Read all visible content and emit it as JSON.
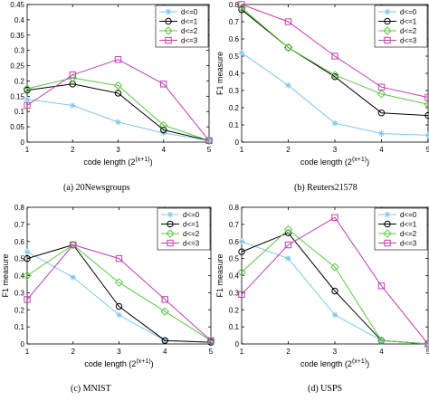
{
  "chart_data": [
    {
      "type": "line",
      "caption": "(a)  20Newsgroups",
      "xlabel": "code length (2^(x+1))",
      "ylabel": "",
      "x": [
        1,
        2,
        3,
        4,
        5
      ],
      "xticks": [
        "1",
        "2",
        "3",
        "4",
        "5"
      ],
      "ylim": [
        0,
        0.45
      ],
      "yticks": [
        "0",
        "0.05",
        "0.1",
        "0.15",
        "0.2",
        "0.25",
        "0.3",
        "0.35",
        "0.4",
        "0.45"
      ],
      "legend": "top-right",
      "series": [
        {
          "name": "d<=0",
          "color": "#7fc8e8",
          "marker": "star",
          "values": [
            0.14,
            0.12,
            0.065,
            0.03,
            0.005
          ]
        },
        {
          "name": "d<=1",
          "color": "#000000",
          "marker": "circle",
          "values": [
            0.17,
            0.19,
            0.16,
            0.04,
            0.005
          ]
        },
        {
          "name": "d<=2",
          "color": "#5cc843",
          "marker": "diamond",
          "values": [
            0.175,
            0.21,
            0.185,
            0.055,
            0.005
          ]
        },
        {
          "name": "d<=3",
          "color": "#c040b0",
          "marker": "square",
          "values": [
            0.12,
            0.22,
            0.27,
            0.19,
            0.005
          ]
        }
      ]
    },
    {
      "type": "line",
      "caption": "(b)  Reuters21578",
      "xlabel": "code length (2^(x+1))",
      "ylabel": "F1 measure",
      "x": [
        1,
        2,
        3,
        4,
        5
      ],
      "xticks": [
        "1",
        "2",
        "3",
        "4",
        "5"
      ],
      "ylim": [
        0,
        0.8
      ],
      "yticks": [
        "0",
        "0.1",
        "0.2",
        "0.3",
        "0.4",
        "0.5",
        "0.6",
        "0.7",
        "0.8"
      ],
      "legend": "top-right",
      "series": [
        {
          "name": "d<=0",
          "color": "#7fc8e8",
          "marker": "star",
          "values": [
            0.52,
            0.33,
            0.11,
            0.05,
            0.04
          ]
        },
        {
          "name": "d<=1",
          "color": "#000000",
          "marker": "circle",
          "values": [
            0.77,
            0.55,
            0.38,
            0.17,
            0.155
          ]
        },
        {
          "name": "d<=2",
          "color": "#5cc843",
          "marker": "diamond",
          "values": [
            0.78,
            0.55,
            0.39,
            0.28,
            0.22
          ]
        },
        {
          "name": "d<=3",
          "color": "#c040b0",
          "marker": "square",
          "values": [
            0.8,
            0.7,
            0.5,
            0.32,
            0.26
          ]
        }
      ]
    },
    {
      "type": "line",
      "caption": "(c)  MNIST",
      "xlabel": "code length (2^(x+1))",
      "ylabel": "F1 measure",
      "x": [
        1,
        2,
        3,
        4,
        5
      ],
      "xticks": [
        "1",
        "2",
        "3",
        "4",
        "5"
      ],
      "ylim": [
        0,
        0.8
      ],
      "yticks": [
        "0",
        "0.1",
        "0.2",
        "0.3",
        "0.4",
        "0.5",
        "0.6",
        "0.7",
        "0.8"
      ],
      "legend": "top-right",
      "series": [
        {
          "name": "d<=0",
          "color": "#7fc8e8",
          "marker": "star",
          "values": [
            0.54,
            0.39,
            0.17,
            0.02,
            0.01
          ]
        },
        {
          "name": "d<=1",
          "color": "#000000",
          "marker": "circle",
          "values": [
            0.5,
            0.58,
            0.22,
            0.02,
            0.01
          ]
        },
        {
          "name": "d<=2",
          "color": "#5cc843",
          "marker": "diamond",
          "values": [
            0.4,
            0.58,
            0.36,
            0.19,
            0.02
          ]
        },
        {
          "name": "d<=3",
          "color": "#c040b0",
          "marker": "square",
          "values": [
            0.26,
            0.58,
            0.5,
            0.26,
            0.02
          ]
        }
      ]
    },
    {
      "type": "line",
      "caption": "(d)  USPS",
      "xlabel": "code length (2^(x+1))",
      "ylabel": "F1 measure",
      "x": [
        1,
        2,
        3,
        4,
        5
      ],
      "xticks": [
        "1",
        "2",
        "3",
        "4",
        "5"
      ],
      "ylim": [
        0,
        0.8
      ],
      "yticks": [
        "0",
        "0.1",
        "0.2",
        "0.3",
        "0.4",
        "0.5",
        "0.6",
        "0.7",
        "0.8"
      ],
      "legend": "top-right",
      "series": [
        {
          "name": "d<=0",
          "color": "#7fc8e8",
          "marker": "star",
          "values": [
            0.6,
            0.5,
            0.17,
            0.02,
            0.0
          ]
        },
        {
          "name": "d<=1",
          "color": "#000000",
          "marker": "circle",
          "values": [
            0.54,
            0.65,
            0.31,
            0.02,
            0.0
          ]
        },
        {
          "name": "d<=2",
          "color": "#5cc843",
          "marker": "diamond",
          "values": [
            0.42,
            0.67,
            0.45,
            0.02,
            0.0
          ]
        },
        {
          "name": "d<=3",
          "color": "#c040b0",
          "marker": "square",
          "values": [
            0.29,
            0.58,
            0.74,
            0.34,
            0.0
          ]
        }
      ]
    }
  ]
}
